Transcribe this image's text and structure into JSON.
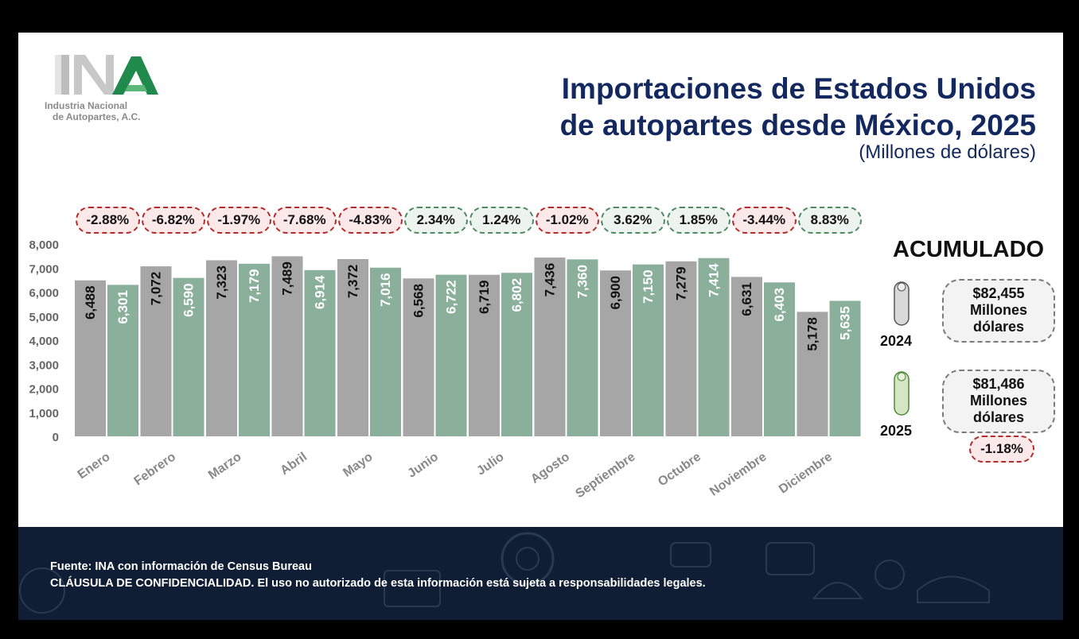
{
  "header": {
    "title_line1": "Importaciones de Estados Unidos",
    "title_line2": "de autopartes desde México, 2025",
    "subtitle": "(Millones de dólares)"
  },
  "logo": {
    "line1": "Industria Nacional",
    "line2": "de Autopartes, A.C."
  },
  "colors": {
    "series_2024": "#a6a6a6",
    "series_2025": "#8ab09b",
    "title": "#12285f",
    "negative": "#b52b2b",
    "positive": "#4e8a62"
  },
  "chart_data": {
    "type": "bar",
    "title": "Importaciones de Estados Unidos de autopartes desde México, 2025",
    "ylabel": "Millones de dólares",
    "ylim": [
      0,
      8000
    ],
    "yticks": [
      "0",
      "1,000",
      "2,000",
      "3,000",
      "4,000",
      "5,000",
      "6,000",
      "7,000",
      "8,000"
    ],
    "categories": [
      "Enero",
      "Febrero",
      "Marzo",
      "Abril",
      "Mayo",
      "Junio",
      "Julio",
      "Agosto",
      "Septiembre",
      "Octubre",
      "Noviembre",
      "Diciembre"
    ],
    "series": [
      {
        "name": "2024",
        "values": [
          6488,
          7072,
          7323,
          7489,
          7372,
          6568,
          6719,
          7436,
          6900,
          7279,
          6631,
          5178
        ],
        "labels": [
          "6,488",
          "7,072",
          "7,323",
          "7,489",
          "7,372",
          "6,568",
          "6,719",
          "7,436",
          "6,900",
          "7,279",
          "6,631",
          "5,178"
        ]
      },
      {
        "name": "2025",
        "values": [
          6301,
          6590,
          7179,
          6914,
          7016,
          6722,
          6802,
          7360,
          7150,
          7414,
          6403,
          5635
        ],
        "labels": [
          "6,301",
          "6,590",
          "7,179",
          "6,914",
          "7,016",
          "6,722",
          "6,802",
          "7,360",
          "7,150",
          "7,414",
          "6,403",
          "5,635"
        ]
      }
    ],
    "changes": [
      "-2.88%",
      "-6.82%",
      "-1.97%",
      "-7.68%",
      "-4.83%",
      "2.34%",
      "1.24%",
      "-1.02%",
      "3.62%",
      "1.85%",
      "-3.44%",
      "8.83%"
    ]
  },
  "acumulado": {
    "title": "ACUMULADO",
    "y2024": {
      "year": "2024",
      "value": "$82,455",
      "unit1": "Millones",
      "unit2": "dólares"
    },
    "y2025": {
      "year": "2025",
      "value": "$81,486",
      "unit1": "Millones",
      "unit2": "dólares"
    },
    "change": "-1.18%"
  },
  "footer": {
    "source": "Fuente: INA con información de Census Bureau",
    "clause": "CLÁUSULA DE  CONFIDENCIALIDAD. El uso no autorizado de esta información está sujeta a responsabilidades legales."
  }
}
